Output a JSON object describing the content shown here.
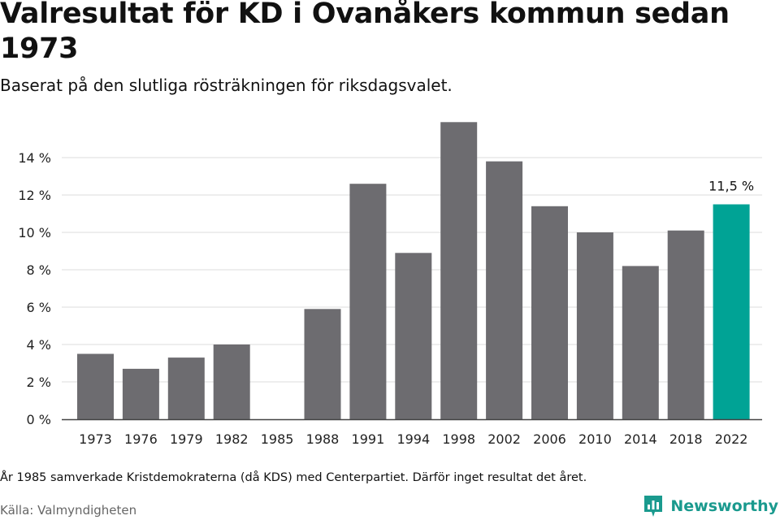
{
  "header": {
    "title": "Valresultat för KD i Ovanåkers kommun sedan 1973",
    "subtitle": "Baserat på den slutliga rösträkningen för riksdagsvalet."
  },
  "footer": {
    "note": "År 1985 samverkade Kristdemokraterna (då KDS) med Centerpartiet. Därför inget resultat det året.",
    "source": "Källa: Valmyndigheten",
    "brand": "Newsworthy"
  },
  "chart_data": {
    "type": "bar",
    "title": "Valresultat för KD i Ovanåkers kommun sedan 1973",
    "xlabel": "",
    "ylabel": "",
    "ylim": [
      0,
      16
    ],
    "yticks": [
      0,
      2,
      4,
      6,
      8,
      10,
      12,
      14
    ],
    "ytick_labels": [
      "0 %",
      "2 %",
      "4 %",
      "6 %",
      "8 %",
      "10 %",
      "12 %",
      "14 %"
    ],
    "categories": [
      "1973",
      "1976",
      "1979",
      "1982",
      "1985",
      "1988",
      "1991",
      "1994",
      "1998",
      "2002",
      "2006",
      "2010",
      "2014",
      "2018",
      "2022"
    ],
    "values": [
      3.5,
      2.7,
      3.3,
      4.0,
      null,
      5.9,
      12.6,
      8.9,
      15.9,
      13.8,
      11.4,
      10.0,
      8.2,
      10.1,
      11.5
    ],
    "highlight_index": 14,
    "highlight_label": "11,5 %",
    "colors": {
      "bar": "#6d6c70",
      "highlight": "#00a395",
      "grid": "#dddddd",
      "axis": "#444444"
    }
  }
}
